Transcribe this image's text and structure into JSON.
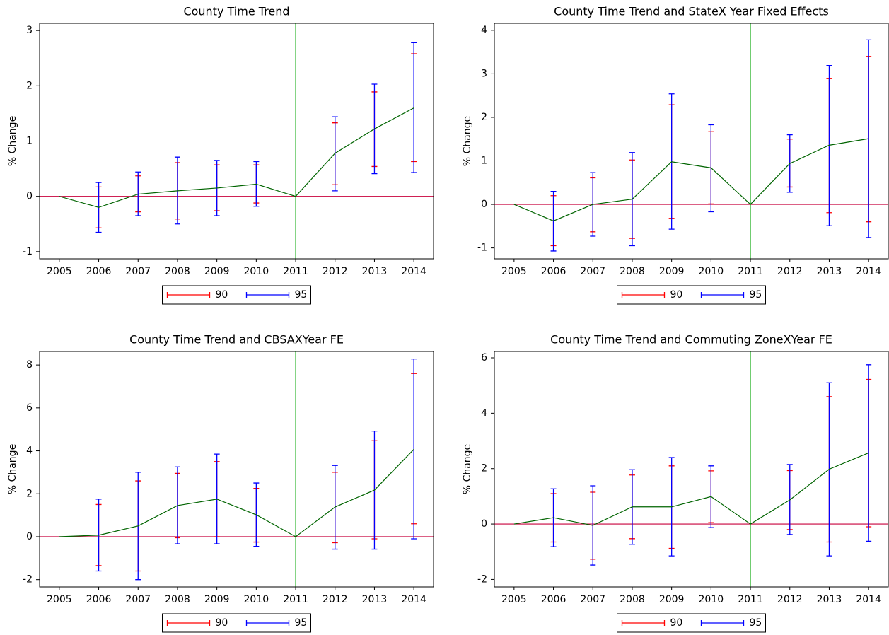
{
  "chart_data": [
    {
      "type": "line",
      "title": "County Time Trend",
      "y_label": "% Change",
      "categories": [
        "2005",
        "2006",
        "2007",
        "2008",
        "2009",
        "2010",
        "2011",
        "2012",
        "2013",
        "2014"
      ],
      "values": [
        0,
        -0.2,
        0.04,
        0.1,
        0.15,
        0.22,
        0,
        0.78,
        1.22,
        1.6
      ],
      "color": "#006400",
      "error_bars": [
        {
          "name": "90",
          "color": "#ff0000",
          "low": [
            null,
            -0.57,
            -0.28,
            -0.41,
            -0.26,
            -0.12,
            null,
            0.21,
            0.54,
            0.63
          ],
          "high": [
            null,
            0.17,
            0.37,
            0.61,
            0.57,
            0.57,
            null,
            1.33,
            1.89,
            2.58
          ]
        },
        {
          "name": "95",
          "color": "#0000ff",
          "low": [
            null,
            -0.65,
            -0.35,
            -0.5,
            -0.35,
            -0.18,
            null,
            0.1,
            0.41,
            0.43
          ],
          "high": [
            null,
            0.25,
            0.44,
            0.71,
            0.65,
            0.63,
            null,
            1.44,
            2.03,
            2.78
          ]
        }
      ],
      "ylim": [
        -1.13,
        3.13
      ],
      "yticks": [
        -1,
        0,
        1,
        2,
        3
      ],
      "reference_y": 0,
      "reference_x": "2011"
    },
    {
      "type": "line",
      "title": "County Time Trend and StateX Year Fixed Effects",
      "y_label": "% Change",
      "categories": [
        "2005",
        "2006",
        "2007",
        "2008",
        "2009",
        "2010",
        "2011",
        "2012",
        "2013",
        "2014"
      ],
      "values": [
        0,
        -0.38,
        0,
        0.12,
        0.98,
        0.84,
        0,
        0.94,
        1.36,
        1.51
      ],
      "color": "#006400",
      "error_bars": [
        {
          "name": "90",
          "color": "#ff0000",
          "low": [
            null,
            -0.95,
            -0.63,
            -0.78,
            -0.32,
            0.01,
            null,
            0.4,
            -0.19,
            -0.4
          ],
          "high": [
            null,
            0.2,
            0.61,
            1.02,
            2.29,
            1.67,
            null,
            1.5,
            2.89,
            3.4
          ]
        },
        {
          "name": "95",
          "color": "#0000ff",
          "low": [
            null,
            -1.07,
            -0.73,
            -0.95,
            -0.57,
            -0.17,
            null,
            0.28,
            -0.49,
            -0.76
          ],
          "high": [
            null,
            0.3,
            0.73,
            1.19,
            2.54,
            1.83,
            null,
            1.6,
            3.19,
            3.78
          ]
        }
      ],
      "ylim": [
        -1.25,
        4.16
      ],
      "yticks": [
        -1,
        0,
        1,
        2,
        3,
        4
      ],
      "reference_y": 0,
      "reference_x": "2011"
    },
    {
      "type": "line",
      "title": "County Time Trend and CBSAXYear FE",
      "y_label": "% Change",
      "categories": [
        "2005",
        "2006",
        "2007",
        "2008",
        "2009",
        "2010",
        "2011",
        "2012",
        "2013",
        "2014"
      ],
      "values": [
        0,
        0.07,
        0.5,
        1.45,
        1.75,
        1.02,
        0,
        1.38,
        2.17,
        4.07
      ],
      "color": "#006400",
      "error_bars": [
        {
          "name": "90",
          "color": "#ff0000",
          "low": [
            null,
            -1.35,
            -1.6,
            -0.05,
            0.0,
            -0.25,
            null,
            -0.28,
            -0.1,
            0.6
          ],
          "high": [
            null,
            1.5,
            2.6,
            2.95,
            3.5,
            2.25,
            null,
            3.0,
            4.47,
            7.6
          ]
        },
        {
          "name": "95",
          "color": "#0000ff",
          "low": [
            null,
            -1.6,
            -2.0,
            -0.33,
            -0.33,
            -0.45,
            null,
            -0.58,
            -0.58,
            -0.1
          ],
          "high": [
            null,
            1.75,
            3.0,
            3.25,
            3.85,
            2.5,
            null,
            3.32,
            4.92,
            8.28
          ]
        }
      ],
      "ylim": [
        -2.34,
        8.63
      ],
      "yticks": [
        -2,
        0,
        2,
        4,
        6,
        8
      ],
      "reference_y": 0,
      "reference_x": "2011"
    },
    {
      "type": "line",
      "title": "County Time Trend and Commuting ZoneXYear FE",
      "y_label": "% Change",
      "categories": [
        "2005",
        "2006",
        "2007",
        "2008",
        "2009",
        "2010",
        "2011",
        "2012",
        "2013",
        "2014"
      ],
      "values": [
        0,
        0.23,
        -0.05,
        0.62,
        0.62,
        0.99,
        0,
        0.87,
        1.98,
        2.57
      ],
      "color": "#006400",
      "error_bars": [
        {
          "name": "90",
          "color": "#ff0000",
          "low": [
            null,
            -0.65,
            -1.27,
            -0.53,
            -0.88,
            0.05,
            null,
            -0.2,
            -0.65,
            -0.1
          ],
          "high": [
            null,
            1.1,
            1.15,
            1.77,
            2.1,
            1.92,
            null,
            1.93,
            4.6,
            5.22
          ]
        },
        {
          "name": "95",
          "color": "#0000ff",
          "low": [
            null,
            -0.82,
            -1.48,
            -0.73,
            -1.15,
            -0.13,
            null,
            -0.38,
            -1.15,
            -0.62
          ],
          "high": [
            null,
            1.27,
            1.38,
            1.96,
            2.4,
            2.1,
            null,
            2.15,
            5.1,
            5.75
          ]
        }
      ],
      "ylim": [
        -2.27,
        6.23
      ],
      "yticks": [
        -2,
        0,
        2,
        4,
        6
      ],
      "reference_y": 0,
      "reference_x": "2011"
    }
  ]
}
